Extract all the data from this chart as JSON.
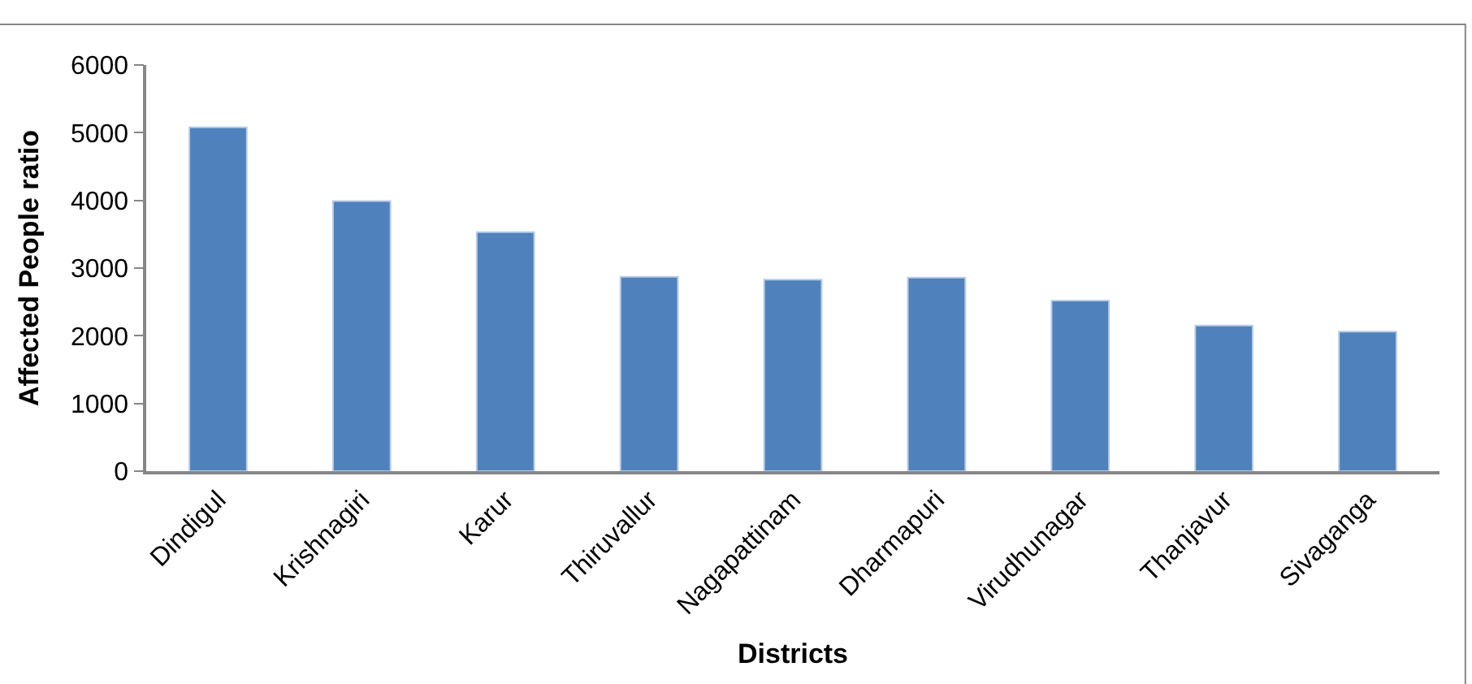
{
  "chart_data": {
    "type": "bar",
    "xlabel": "Districts",
    "ylabel": "Affected People ratio",
    "categories": [
      "Dindigul",
      "Krishnagiri",
      "Karur",
      "Thiruvallur",
      "Nagapattinam",
      "Dharmapuri",
      "Virudhunagar",
      "Thanjavur",
      "Sivaganga"
    ],
    "values": [
      5080,
      3990,
      3530,
      2870,
      2830,
      2860,
      2520,
      2150,
      2060
    ],
    "color": "#4f81bd",
    "ylim": [
      0,
      6000
    ],
    "yticks": [
      0,
      1000,
      2000,
      3000,
      4000,
      5000,
      6000
    ],
    "legend": false
  }
}
